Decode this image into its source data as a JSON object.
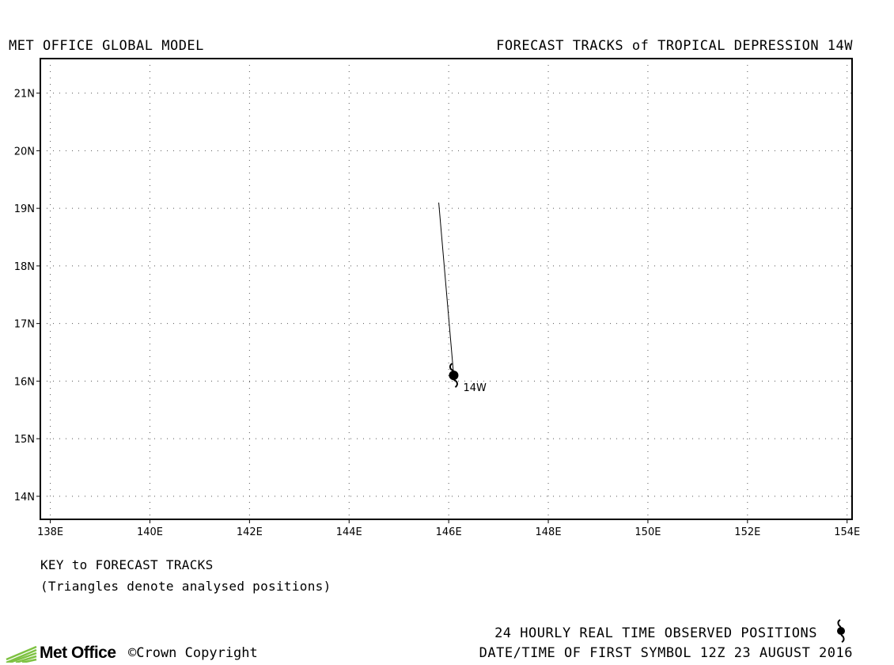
{
  "header": {
    "left_title": "MET OFFICE GLOBAL MODEL",
    "right_title": "FORECAST TRACKS of TROPICAL DEPRESSION 14W"
  },
  "map": {
    "lon_range": [
      137.8,
      154.1
    ],
    "lat_range": [
      13.6,
      21.6
    ],
    "lon_ticks": [
      138,
      140,
      142,
      144,
      146,
      148,
      150,
      152,
      154
    ],
    "lat_ticks": [
      14,
      15,
      16,
      17,
      18,
      19,
      20,
      21
    ],
    "lon_tick_labels": [
      "138E",
      "140E",
      "142E",
      "144E",
      "146E",
      "148E",
      "150E",
      "152E",
      "154E"
    ],
    "lat_tick_labels": [
      "14N",
      "15N",
      "16N",
      "17N",
      "18N",
      "19N",
      "20N",
      "21N"
    ],
    "grid": "dotted",
    "storm": {
      "name": "14W",
      "position": {
        "lon": 146.1,
        "lat": 16.1
      },
      "track": [
        {
          "lon": 146.1,
          "lat": 16.1
        },
        {
          "lon": 145.8,
          "lat": 19.1
        }
      ],
      "symbol": "tropical-cyclone-symbol"
    }
  },
  "key": {
    "title": "KEY to FORECAST TRACKS",
    "subtitle": "(Triangles denote analysed positions)"
  },
  "footer": {
    "logo_text": "Met Office",
    "copyright": "©Crown Copyright",
    "observed_label": "24 HOURLY REAL TIME OBSERVED POSITIONS",
    "date_label": "DATE/TIME OF FIRST SYMBOL 12Z 23 AUGUST 2016"
  },
  "colors": {
    "logo_green": "#7ec242",
    "ink": "#000000"
  }
}
